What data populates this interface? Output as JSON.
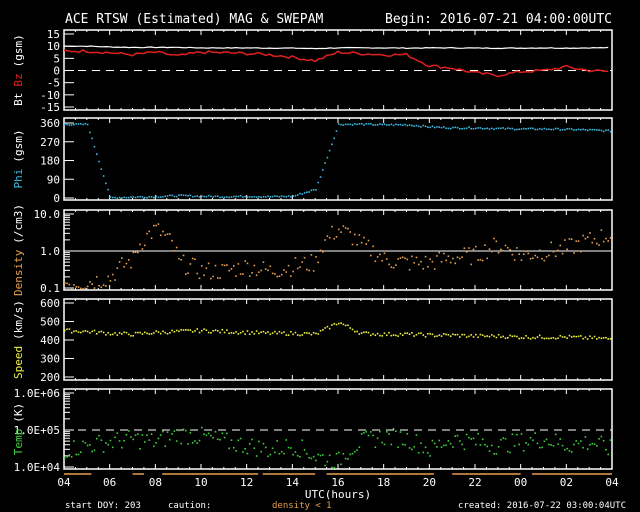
{
  "header": {
    "title": "ACE RTSW (Estimated) MAG & SWEPAM",
    "begin": "Begin: 2016-07-21 04:00:00UTC"
  },
  "footer": {
    "start_doy": "start DOY: 203",
    "caution": "caution:",
    "caution_note": "density < 1",
    "created": "created: 2016-07-22 03:00:04UTC",
    "xlabel": "UTC(hours)"
  },
  "colors": {
    "bt": "#ffffff",
    "bz": "#e0201c",
    "phi": "#3fb8e0",
    "density": "#e8a050",
    "speed": "#f0f040",
    "temp": "#40d040"
  },
  "chart_data": {
    "type": "line",
    "x_hours_from_start": [
      0,
      1,
      2,
      3,
      4,
      5,
      6,
      7,
      8,
      9,
      10,
      11,
      12,
      13,
      14,
      15,
      16,
      17,
      18,
      19,
      20,
      21,
      22,
      23,
      24
    ],
    "x_tick_labels": [
      "04",
      "06",
      "08",
      "10",
      "12",
      "14",
      "16",
      "18",
      "20",
      "22",
      "00",
      "02",
      "04"
    ],
    "panels": [
      {
        "id": "mag",
        "ylabel": [
          "Bt",
          "Bz",
          "(gsm)"
        ],
        "ylim": [
          -15,
          15
        ],
        "scale": "linear",
        "ticks": [
          "15",
          "10",
          "5",
          "0",
          "-5",
          "-10",
          "-15"
        ],
        "tick_values": [
          15,
          10,
          5,
          0,
          -5,
          -10,
          -15
        ],
        "reference_line": 0,
        "series": [
          {
            "name": "Bt",
            "type": "line",
            "values": [
              10,
              10,
              9.7,
              9.5,
              9.5,
              9.5,
              9.3,
              9.3,
              9.3,
              9.2,
              9.2,
              9,
              9.3,
              9.3,
              9.3,
              9.2,
              9.3,
              9.3,
              9.2,
              9.2,
              9.2,
              9.3,
              9.2,
              9.3,
              9.4
            ]
          },
          {
            "name": "Bz",
            "type": "line",
            "values": [
              8,
              8,
              7.3,
              6.5,
              7.5,
              6,
              7.5,
              7.3,
              7,
              6.5,
              5.5,
              4,
              7.5,
              7,
              6.5,
              6.5,
              2,
              1,
              -1,
              -2,
              -0.5,
              0,
              1.5,
              0,
              -0.5
            ]
          }
        ]
      },
      {
        "id": "phi",
        "ylabel": [
          "Phi",
          "(gsm)"
        ],
        "ylim": [
          0,
          360
        ],
        "scale": "linear",
        "ticks": [
          "360",
          "270",
          "180",
          "90",
          "0"
        ],
        "tick_values": [
          360,
          270,
          180,
          90,
          0
        ],
        "series": [
          {
            "name": "Phi",
            "type": "scatter",
            "values": [
              357,
              357,
              5,
              8,
              10,
              15,
              12,
              10,
              12,
              10,
              12,
              45,
              357,
              358,
              355,
              355,
              345,
              340,
              340,
              337,
              335,
              335,
              333,
              330,
              325
            ]
          }
        ]
      },
      {
        "id": "density",
        "ylabel": [
          "Density",
          "(/cm3)"
        ],
        "ylim": [
          0.1,
          10
        ],
        "scale": "log",
        "ticks": [
          "10.0",
          "1.0",
          "0.1"
        ],
        "tick_values": [
          10,
          1,
          0.1
        ],
        "reference_line": 1,
        "series": [
          {
            "name": "Density",
            "type": "scatter",
            "values": [
              0.15,
              0.15,
              0.2,
              0.6,
              4,
              0.5,
              0.3,
              0.3,
              0.4,
              0.3,
              0.4,
              0.5,
              4,
              1.5,
              0.6,
              0.5,
              0.5,
              0.7,
              0.8,
              1.5,
              0.8,
              1,
              1.2,
              2,
              3
            ]
          }
        ]
      },
      {
        "id": "speed",
        "ylabel": [
          "Speed",
          "(km/s)"
        ],
        "ylim": [
          200,
          600
        ],
        "scale": "linear",
        "ticks": [
          "600",
          "500",
          "400",
          "300",
          "200"
        ],
        "tick_values": [
          600,
          500,
          400,
          300,
          200
        ],
        "series": [
          {
            "name": "Speed",
            "type": "scatter",
            "values": [
              455,
              450,
              440,
              435,
              445,
              450,
              455,
              450,
              445,
              440,
              440,
              435,
              500,
              440,
              435,
              435,
              430,
              430,
              425,
              425,
              420,
              420,
              420,
              415,
              410
            ]
          }
        ]
      },
      {
        "id": "temp",
        "ylabel": [
          "Temp",
          "(K)"
        ],
        "ylim": [
          10000,
          1000000
        ],
        "scale": "log",
        "ticks": [
          "1.0E+06",
          "1.0E+05",
          "1.0E+04"
        ],
        "tick_values": [
          1000000,
          100000,
          10000
        ],
        "reference_line": 100000,
        "series": [
          {
            "name": "Temp",
            "type": "scatter",
            "values": [
              30000,
              40000,
              50000,
              60000,
              50000,
              80000,
              70000,
              50000,
              40000,
              30000,
              40000,
              20000,
              15000,
              50000,
              70000,
              60000,
              30000,
              60000,
              50000,
              40000,
              50000,
              60000,
              40000,
              50000,
              30000
            ]
          }
        ]
      }
    ],
    "density_lt_1_intervals_hours": [
      [
        0,
        1.2
      ],
      [
        3,
        3.5
      ],
      [
        4.3,
        8.5
      ],
      [
        8.7,
        11
      ],
      [
        11.5,
        16.2
      ],
      [
        17,
        20
      ],
      [
        20.5,
        24
      ]
    ]
  }
}
